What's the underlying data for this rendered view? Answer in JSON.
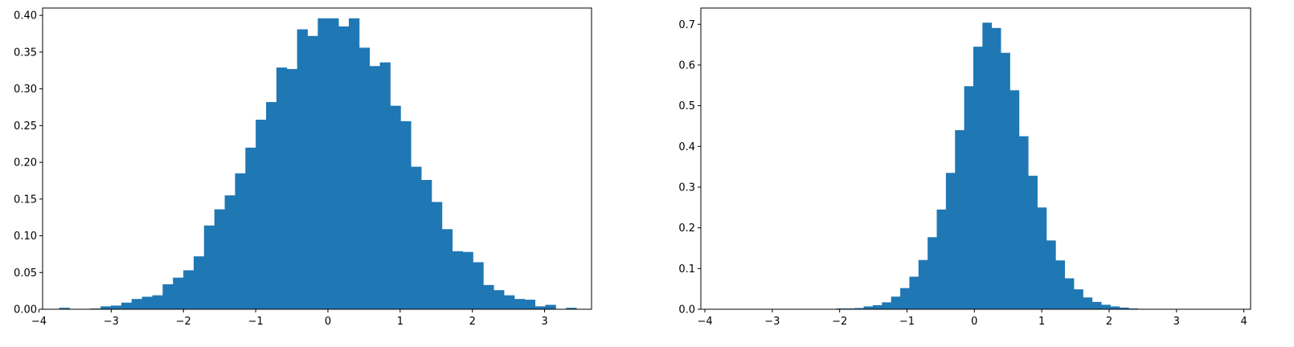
{
  "chart_data": [
    {
      "type": "bar",
      "title": "",
      "xlabel": "",
      "ylabel": "",
      "grid": false,
      "color": "#1f77b4",
      "xlim": [
        -3.95,
        3.65
      ],
      "ylim": [
        0,
        0.41
      ],
      "bin_start": -3.72,
      "bin_width": 0.1432,
      "values": [
        0.002,
        0,
        0,
        0.001,
        0.004,
        0.005,
        0.009,
        0.014,
        0.017,
        0.019,
        0.034,
        0.043,
        0.053,
        0.072,
        0.114,
        0.136,
        0.155,
        0.185,
        0.22,
        0.258,
        0.282,
        0.329,
        0.327,
        0.381,
        0.372,
        0.396,
        0.396,
        0.385,
        0.396,
        0.356,
        0.331,
        0.336,
        0.277,
        0.256,
        0.194,
        0.176,
        0.146,
        0.109,
        0.079,
        0.078,
        0.064,
        0.033,
        0.026,
        0.019,
        0.014,
        0.013,
        0.004,
        0.006,
        0,
        0.002
      ],
      "xticks": [
        -4,
        -3,
        -2,
        -1,
        0,
        1,
        2,
        3
      ],
      "xtick_labels": [
        "−4",
        "−3",
        "−2",
        "−1",
        "0",
        "1",
        "2",
        "3"
      ],
      "yticks": [
        0,
        0.05,
        0.1,
        0.15,
        0.2,
        0.25,
        0.3,
        0.35,
        0.4
      ],
      "ytick_labels": [
        "0.00",
        "0.05",
        "0.10",
        "0.15",
        "0.20",
        "0.25",
        "0.30",
        "0.35",
        "0.40"
      ]
    },
    {
      "type": "bar",
      "title": "",
      "xlabel": "",
      "ylabel": "",
      "grid": false,
      "color": "#1f77b4",
      "xlim": [
        -4.06,
        4.1
      ],
      "ylim": [
        0,
        0.74
      ],
      "bin_start": -2.05,
      "bin_width": 0.1356,
      "values": [
        0.002,
        0.002,
        0.003,
        0.007,
        0.01,
        0.017,
        0.031,
        0.052,
        0.08,
        0.121,
        0.177,
        0.245,
        0.335,
        0.44,
        0.548,
        0.645,
        0.704,
        0.691,
        0.63,
        0.538,
        0.425,
        0.328,
        0.25,
        0.169,
        0.12,
        0.076,
        0.049,
        0.029,
        0.018,
        0.011,
        0.007,
        0.004,
        0.002,
        0.001
      ],
      "xticks": [
        -4,
        -3,
        -2,
        -1,
        0,
        1,
        2,
        3,
        4
      ],
      "xtick_labels": [
        "−4",
        "−3",
        "−2",
        "−1",
        "0",
        "1",
        "2",
        "3",
        "4"
      ],
      "yticks": [
        0,
        0.1,
        0.2,
        0.3,
        0.4,
        0.5,
        0.6,
        0.7
      ],
      "ytick_labels": [
        "0.0",
        "0.1",
        "0.2",
        "0.3",
        "0.4",
        "0.5",
        "0.6",
        "0.7"
      ]
    }
  ]
}
